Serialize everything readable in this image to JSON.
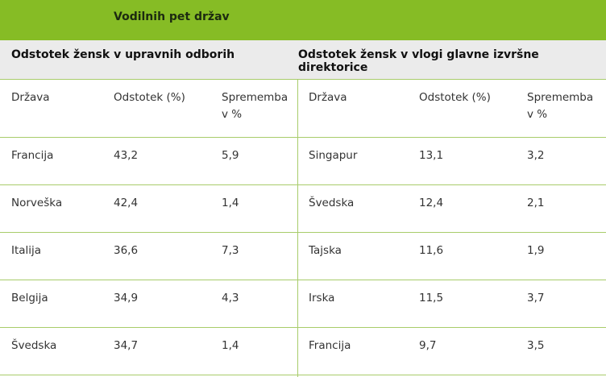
{
  "title": "Vodilnih pet držav",
  "left_section": "Odstotek žensk v upravnih odborih",
  "right_section": "Odstotek žensk v vlogi glavne izvršne direktorice",
  "headers": [
    "Država",
    "Odstotek (%)",
    "Sprememba v %",
    "Država",
    "Odstotek (%)",
    "Sprememba v %"
  ],
  "rows": [
    [
      "Francija",
      "43,2",
      "5,9",
      "Singapur",
      "13,1",
      "3,2"
    ],
    [
      "Norveška",
      "42,4",
      "1,4",
      "Švedska",
      "12,4",
      "2,1"
    ],
    [
      "Italija",
      "36,6",
      "7,3",
      "Tajska",
      "11,6",
      "1,9"
    ],
    [
      "Belgija",
      "34,9",
      "4,3",
      "Irska",
      "11,5",
      "3,7"
    ],
    [
      "Švedska",
      "34,7",
      "1,4",
      "Francija",
      "9,7",
      "3,5"
    ]
  ],
  "colors": {
    "header_green": "#86bc25",
    "subheader_gray": "#ebebeb",
    "rule_green": "#a8cc6a"
  }
}
